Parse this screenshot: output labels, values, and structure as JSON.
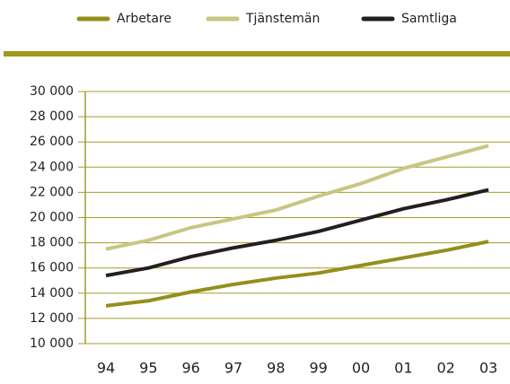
{
  "chart_data": {
    "type": "line",
    "categories": [
      "94",
      "95",
      "96",
      "97",
      "98",
      "99",
      "00",
      "01",
      "02",
      "03"
    ],
    "series": [
      {
        "name": "Arbetare",
        "color": "#948f1c",
        "values": [
          13000,
          13400,
          14100,
          14700,
          15200,
          15600,
          16200,
          16800,
          17400,
          18100
        ]
      },
      {
        "name": "Tjänstemän",
        "color": "#c8c682",
        "values": [
          17500,
          18200,
          19200,
          19900,
          20600,
          21700,
          22700,
          23900,
          24800,
          25700
        ]
      },
      {
        "name": "Samtliga",
        "color": "#231f20",
        "values": [
          15400,
          16000,
          16900,
          17600,
          18200,
          18900,
          19800,
          20700,
          21400,
          22200
        ]
      }
    ],
    "ylim": [
      10000,
      30000
    ],
    "yticks": [
      {
        "value": 10000,
        "label": "10 000"
      },
      {
        "value": 12000,
        "label": "12 000"
      },
      {
        "value": 14000,
        "label": "14 000"
      },
      {
        "value": 16000,
        "label": "16 000"
      },
      {
        "value": 18000,
        "label": "18 000"
      },
      {
        "value": 20000,
        "label": "20 000"
      },
      {
        "value": 22000,
        "label": "22 000"
      },
      {
        "value": 24000,
        "label": "24 000"
      },
      {
        "value": 26000,
        "label": "26 000"
      },
      {
        "value": 28000,
        "label": "28 000"
      },
      {
        "value": 30000,
        "label": "30 000"
      }
    ],
    "grid": true
  }
}
